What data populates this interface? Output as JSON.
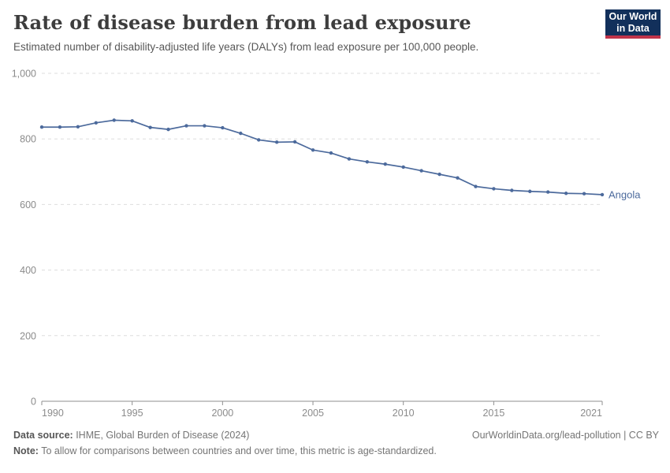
{
  "header": {
    "title": "Rate of disease burden from lead exposure",
    "subtitle": "Estimated number of disability-adjusted life years (DALYs) from lead exposure per 100,000 people."
  },
  "logo": {
    "line1": "Our World",
    "line2": "in Data",
    "bg_color": "#12305b",
    "accent_color": "#c0344a"
  },
  "chart_data": {
    "type": "line",
    "title": "Rate of disease burden from lead exposure",
    "subtitle": "Estimated number of disability-adjusted life years (DALYs) from lead exposure per 100,000 people.",
    "xlabel": "",
    "ylabel": "",
    "xlim": [
      1990,
      2021
    ],
    "ylim": [
      0,
      1000
    ],
    "xticks": [
      1990,
      1995,
      2000,
      2005,
      2010,
      2015,
      2021
    ],
    "yticks": [
      0,
      200,
      400,
      600,
      800,
      1000
    ],
    "grid": true,
    "legend_position": "end-of-line",
    "colors": {
      "line": "#4C6A9C",
      "gridline": "#dddddd",
      "axis": "#8f8f8f",
      "tick_label": "#8b8b8b"
    },
    "series": [
      {
        "name": "Angola",
        "color": "#4C6A9C",
        "x": [
          1990,
          1991,
          1992,
          1993,
          1994,
          1995,
          1996,
          1997,
          1998,
          1999,
          2000,
          2001,
          2002,
          2003,
          2004,
          2005,
          2006,
          2007,
          2008,
          2009,
          2010,
          2011,
          2012,
          2013,
          2014,
          2015,
          2016,
          2017,
          2018,
          2019,
          2020,
          2021
        ],
        "values": [
          836,
          836,
          837,
          849,
          857,
          855,
          835,
          829,
          840,
          840,
          834,
          817,
          797,
          790,
          791,
          766,
          757,
          739,
          730,
          723,
          714,
          703,
          692,
          681,
          655,
          648,
          643,
          640,
          638,
          634,
          633,
          630
        ]
      }
    ]
  },
  "footer": {
    "datasource_label": "Data source:",
    "datasource_value": " IHME, Global Burden of Disease (2024)",
    "note_label": "Note:",
    "note_value": " To allow for comparisons between countries and over time, this metric is age-standardized.",
    "url": "OurWorldinData.org/lead-pollution | CC BY"
  }
}
